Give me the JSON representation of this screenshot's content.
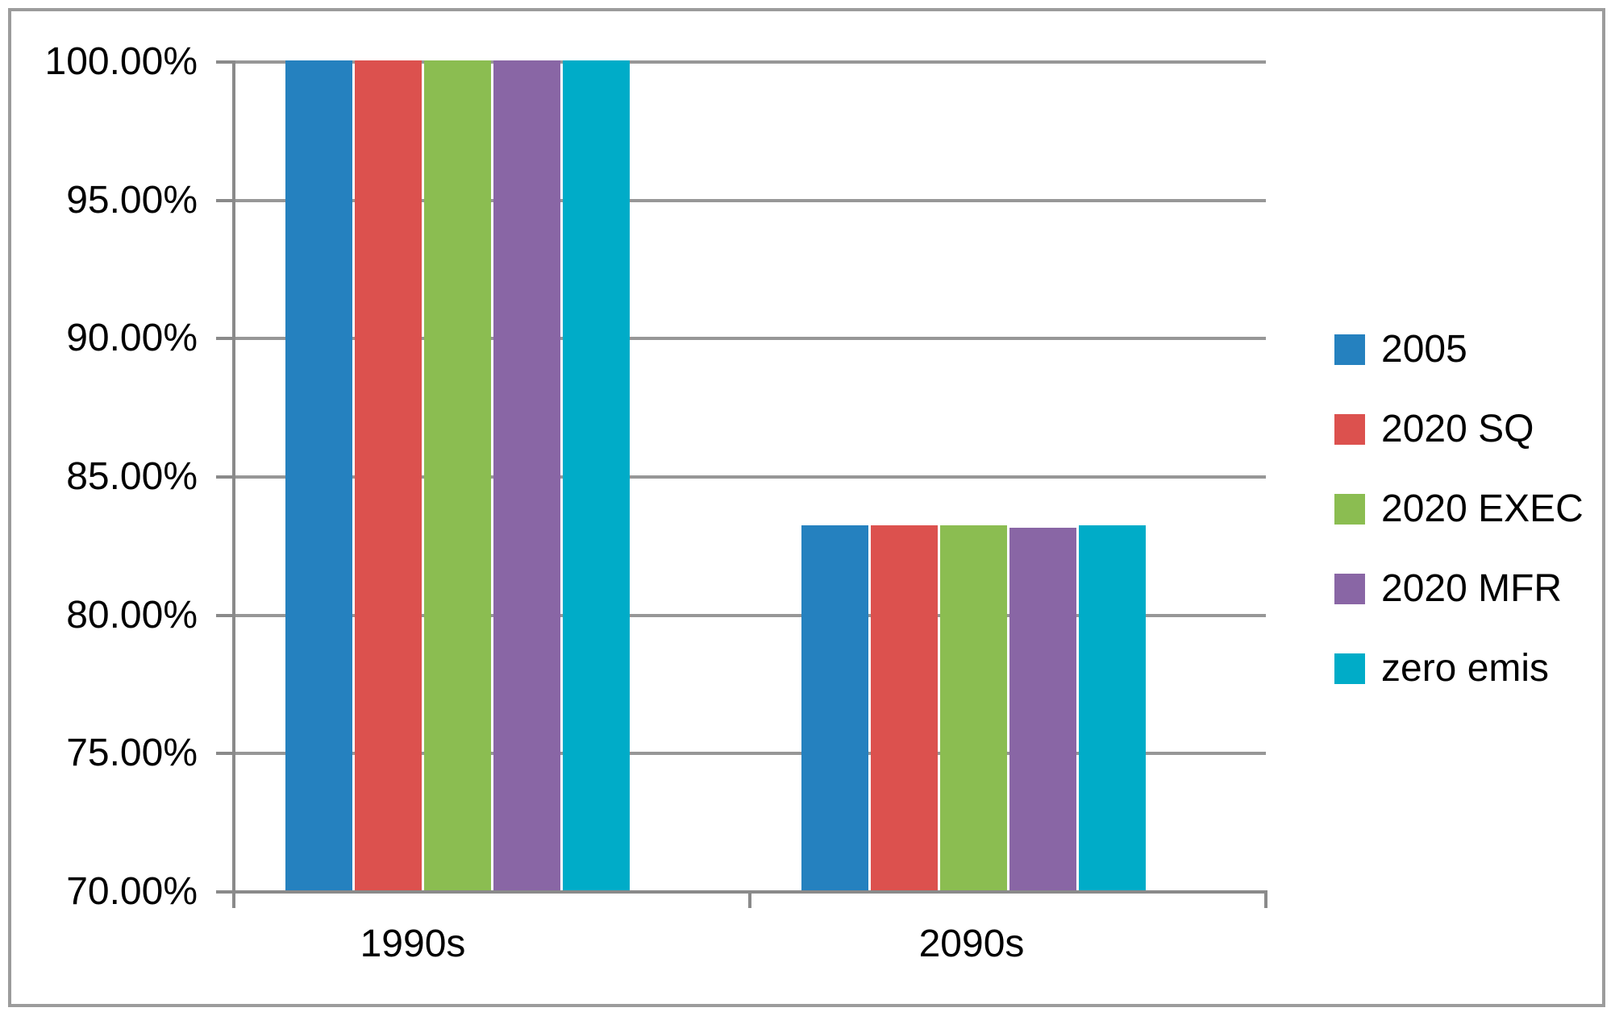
{
  "chart_data": {
    "type": "bar",
    "title": "",
    "xlabel": "",
    "ylabel": "",
    "categories": [
      "1990s",
      "2090s"
    ],
    "series": [
      {
        "name": "2005",
        "color": "#2581bf",
        "values": [
          100.0,
          83.2
        ]
      },
      {
        "name": "2020 SQ",
        "color": "#dc514e",
        "values": [
          100.0,
          83.2
        ]
      },
      {
        "name": "2020 EXEC",
        "color": "#8bbd51",
        "values": [
          100.0,
          83.2
        ]
      },
      {
        "name": "2020 MFR",
        "color": "#8966a5",
        "values": [
          100.0,
          83.1
        ]
      },
      {
        "name": "zero emis",
        "color": "#00acc8",
        "values": [
          100.0,
          83.2
        ]
      }
    ],
    "y_axis": {
      "min": 70,
      "max": 100,
      "step": 5,
      "tick_labels_top_to_bottom": [
        "100.00%",
        "95.00%",
        "90.00%",
        "85.00%",
        "80.00%",
        "75.00%",
        "70.00%"
      ]
    },
    "x_axis": {
      "tick_labels": [
        "1990s",
        "2090s"
      ]
    },
    "legend": {
      "position": "right",
      "entries": [
        "2005",
        "2020 SQ",
        "2020 EXEC",
        "2020 MFR",
        "zero emis"
      ]
    },
    "grid": "horizontal gridlines on",
    "colors": {
      "gridline": "#979797",
      "axis": "#8a8a8a",
      "frame_border": "#9c9c9c",
      "text": "#000000",
      "background": "#ffffff"
    }
  }
}
